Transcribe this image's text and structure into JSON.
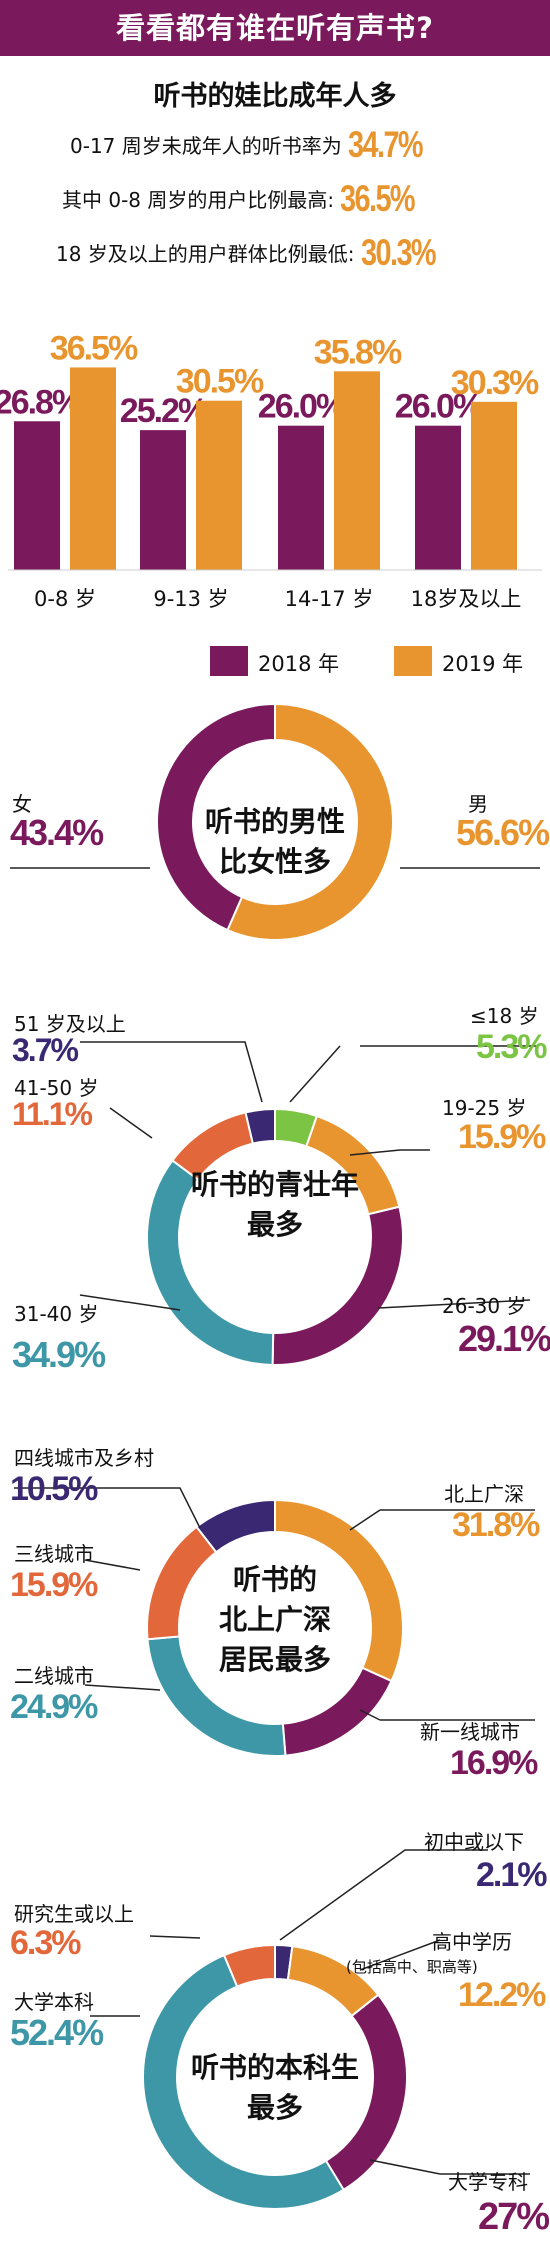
{
  "header": {
    "title": "看看都有谁在听有声书?"
  },
  "minor": {
    "heading": "听书的娃比成年人多",
    "stats": [
      {
        "text": "0-17 周岁未成年人的听书率为",
        "value": "34.7%"
      },
      {
        "text": "其中 0-8 周岁的用户比例最高:",
        "value": "36.5%"
      },
      {
        "text": "18 岁及以上的用户群体比例最低:",
        "value": "30.3%"
      }
    ]
  },
  "colors": {
    "purple": "#7a1a5c",
    "orange": "#e8952f",
    "teal": "#3d97a6",
    "red": "#e2673a",
    "green": "#7cc443",
    "navy": "#3a2872",
    "banner": "#7a1a5c"
  },
  "chart_data": [
    {
      "type": "bar",
      "categories": [
        "0-8 岁",
        "9-13 岁",
        "14-17 岁",
        "18岁及以上"
      ],
      "series": [
        {
          "name": "2018 年",
          "values": [
            26.8,
            25.2,
            26.0,
            26.0
          ],
          "labels": [
            "26.8%",
            "25.2%",
            "26.0%",
            "26.0%"
          ],
          "color": "#7a1a5c"
        },
        {
          "name": "2019 年",
          "values": [
            36.5,
            30.5,
            35.8,
            30.3
          ],
          "labels": [
            "36.5%",
            "30.5%",
            "35.8%",
            "30.3%"
          ],
          "color": "#e8952f"
        }
      ],
      "legend": "bottom-right"
    },
    {
      "type": "pie",
      "center_text": [
        "听书的男性",
        "比女性多"
      ],
      "slices": [
        {
          "label": "男",
          "value": 56.6,
          "display": "56.6%",
          "color": "#e8952f"
        },
        {
          "label": "女",
          "value": 43.4,
          "display": "43.4%",
          "color": "#7a1a5c"
        }
      ]
    },
    {
      "type": "pie",
      "center_text": [
        "听书的青壮年",
        "最多"
      ],
      "slices": [
        {
          "label": "≤18 岁",
          "value": 5.3,
          "display": "5.3%",
          "color": "#7cc443"
        },
        {
          "label": "19-25 岁",
          "value": 15.9,
          "display": "15.9%",
          "color": "#e8952f"
        },
        {
          "label": "26-30 岁",
          "value": 29.1,
          "display": "29.1%",
          "color": "#7a1a5c"
        },
        {
          "label": "31-40 岁",
          "value": 34.9,
          "display": "34.9%",
          "color": "#3d97a6"
        },
        {
          "label": "41-50 岁",
          "value": 11.1,
          "display": "11.1%",
          "color": "#e2673a"
        },
        {
          "label": "51 岁及以上",
          "value": 3.7,
          "display": "3.7%",
          "color": "#3a2872"
        }
      ]
    },
    {
      "type": "pie",
      "center_text": [
        "听书的",
        "北上广深",
        "居民最多"
      ],
      "slices": [
        {
          "label": "北上广深",
          "value": 31.8,
          "display": "31.8%",
          "color": "#e8952f"
        },
        {
          "label": "新一线城市",
          "value": 16.9,
          "display": "16.9%",
          "color": "#7a1a5c"
        },
        {
          "label": "二线城市",
          "value": 24.9,
          "display": "24.9%",
          "color": "#3d97a6"
        },
        {
          "label": "三线城市",
          "value": 15.9,
          "display": "15.9%",
          "color": "#e2673a"
        },
        {
          "label": "四线城市及乡村",
          "value": 10.5,
          "display": "10.5%",
          "color": "#3a2872"
        }
      ]
    },
    {
      "type": "pie",
      "center_text": [
        "听书的本科生",
        "最多"
      ],
      "slices": [
        {
          "label": "初中或以下",
          "value": 2.1,
          "display": "2.1%",
          "color": "#3a2872"
        },
        {
          "label": "高中学历",
          "sublabel": "(包括高中、职高等)",
          "value": 12.2,
          "display": "12.2%",
          "color": "#e8952f"
        },
        {
          "label": "大学专科",
          "value": 27,
          "display": "27%",
          "color": "#7a1a5c"
        },
        {
          "label": "大学本科",
          "value": 52.4,
          "display": "52.4%",
          "color": "#3d97a6"
        },
        {
          "label": "研究生或以上",
          "value": 6.3,
          "display": "6.3%",
          "color": "#e2673a"
        }
      ]
    }
  ]
}
